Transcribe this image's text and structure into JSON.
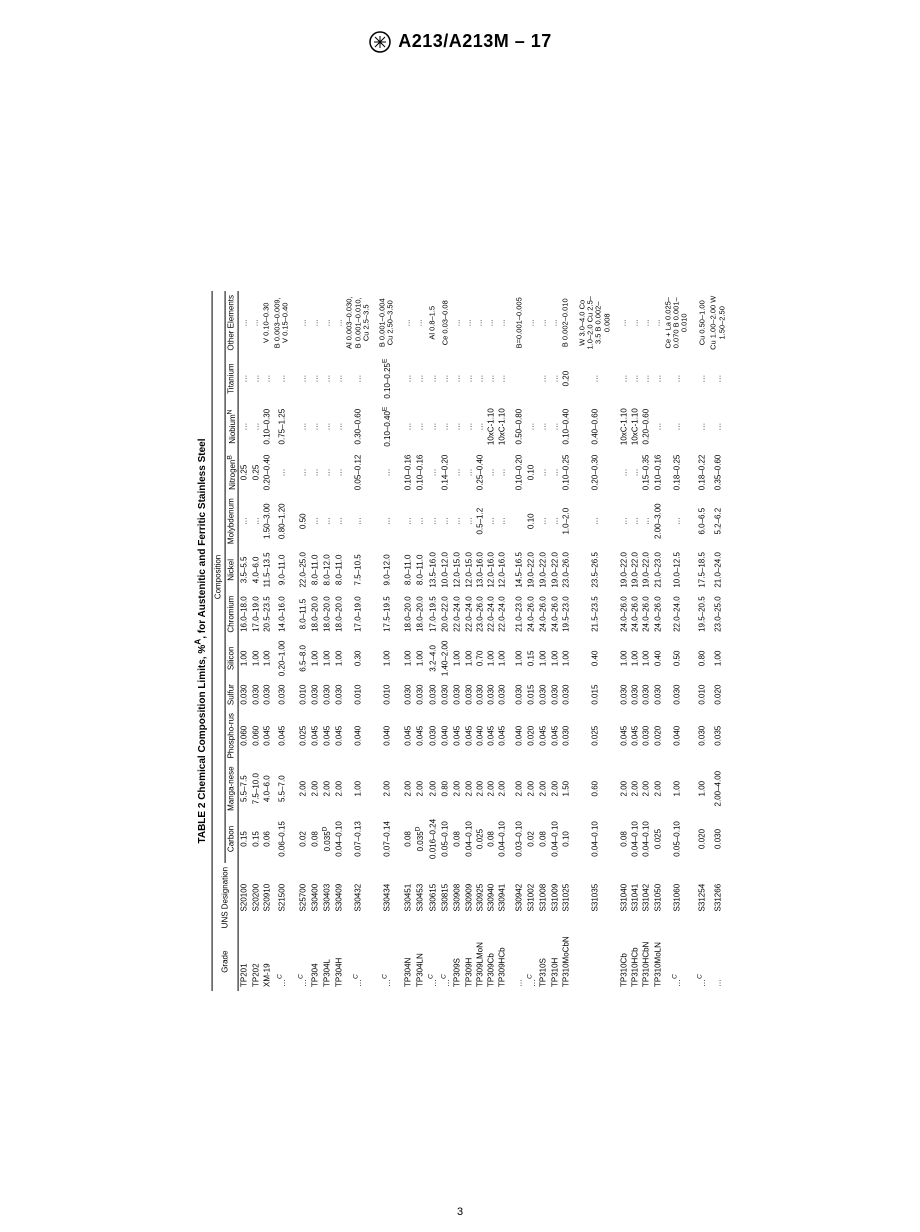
{
  "doc": {
    "standard": "A213/A213M – 17",
    "table_title": "TABLE 2 Chemical Composition Limits, %",
    "table_title_sup": "A",
    "table_title_tail": ", for Austenitic and Ferritic Stainless Steel",
    "composition_label": "Composition",
    "page_number": "3"
  },
  "columns": [
    "Grade",
    "UNS Designation",
    "Carbon",
    "Manga-nese",
    "Phospho-rus",
    "Sulfur",
    "Silicon",
    "Chromium",
    "Nickel",
    "Molybdenum",
    "Nitrogen",
    "Niobium",
    "Titanium",
    "Other Elements"
  ],
  "col_sup": {
    "11": "B",
    "12": "N"
  },
  "groups": [
    {
      "rows": [
        {
          "grade": "TP201",
          "uns": "S20100",
          "c": "0.15",
          "mn": "5.5–7.5",
          "p": "0.060",
          "s": "0.030",
          "si": "1.00",
          "cr": "16.0–18.0",
          "ni": "3.5–5.5",
          "mo": "…",
          "n": "0.25",
          "nb": "…",
          "ti": "…",
          "other": "…"
        },
        {
          "grade": "TP202",
          "uns": "S20200",
          "c": "0.15",
          "mn": "7.5–10.0",
          "p": "0.060",
          "s": "0.030",
          "si": "1.00",
          "cr": "17.0–19.0",
          "ni": "4.0–6.0",
          "mo": "…",
          "n": "0.25",
          "nb": "…",
          "ti": "…",
          "other": "…"
        },
        {
          "grade": "XM-19",
          "uns": "S20910",
          "c": "0.06",
          "mn": "4.0–6.0",
          "p": "0.045",
          "s": "0.030",
          "si": "1.00",
          "cr": "20.5–23.5",
          "ni": "11.5–13.5",
          "mo": "1.50–3.00",
          "n": "0.20–0.40",
          "nb": "0.10–0.30",
          "ti": "…",
          "other": "V 0.10–0.30"
        },
        {
          "grade": "…C",
          "uns": "S21500",
          "c": "0.06–0.15",
          "mn": "5.5–7.0",
          "p": "0.045",
          "s": "0.030",
          "si": "0.20–1.00",
          "cr": "14.0–16.0",
          "ni": "9.0–11.0",
          "mo": "0.80–1.20",
          "n": "…",
          "nb": "0.75–1.25",
          "ti": "…",
          "other": "B 0.003–0.009, V 0.15–0.40"
        }
      ]
    },
    {
      "rows": [
        {
          "grade": "…C",
          "uns": "S25700",
          "c": "0.02",
          "mn": "2.00",
          "p": "0.025",
          "s": "0.010",
          "si": "6.5–8.0",
          "cr": "8.0–11.5",
          "ni": "22.0–25.0",
          "mo": "0.50",
          "n": "…",
          "nb": "…",
          "ti": "…",
          "other": "…"
        },
        {
          "grade": "TP304",
          "uns": "S30400",
          "c": "0.08",
          "mn": "2.00",
          "p": "0.045",
          "s": "0.030",
          "si": "1.00",
          "cr": "18.0–20.0",
          "ni": "8.0–11.0",
          "mo": "…",
          "n": "…",
          "nb": "…",
          "ti": "…",
          "other": "…"
        },
        {
          "grade": "TP304L",
          "uns": "S30403",
          "c": "0.035D",
          "mn": "2.00",
          "p": "0.045",
          "s": "0.030",
          "si": "1.00",
          "cr": "18.0–20.0",
          "ni": "8.0–12.0",
          "mo": "…",
          "n": "…",
          "nb": "…",
          "ti": "…",
          "other": "…"
        },
        {
          "grade": "TP304H",
          "uns": "S30409",
          "c": "0.04–0.10",
          "mn": "2.00",
          "p": "0.045",
          "s": "0.030",
          "si": "1.00",
          "cr": "18.0–20.0",
          "ni": "8.0–11.0",
          "mo": "…",
          "n": "…",
          "nb": "…",
          "ti": "…",
          "other": "…"
        },
        {
          "grade": "…C",
          "uns": "S30432",
          "c": "0.07–0.13",
          "mn": "1.00",
          "p": "0.040",
          "s": "0.010",
          "si": "0.30",
          "cr": "17.0–19.0",
          "ni": "7.5–10.5",
          "mo": "…",
          "n": "0.05–0.12",
          "nb": "0.30–0.60",
          "ti": "…",
          "other": "Al 0.003–0.030, B 0.001–0.010, Cu 2.5–3.5"
        }
      ]
    },
    {
      "rows": [
        {
          "grade": "…C",
          "uns": "S30434",
          "c": "0.07–0.14",
          "mn": "2.00",
          "p": "0.040",
          "s": "0.010",
          "si": "1.00",
          "cr": "17.5–19.5",
          "ni": "9.0–12.0",
          "mo": "…",
          "n": "…",
          "nb": "0.10–0.40E",
          "ti": "0.10–0.25E",
          "other": "B 0.001–0.004 Cu 2.50–3.50"
        }
      ]
    },
    {
      "rows": [
        {
          "grade": "TP304N",
          "uns": "S30451",
          "c": "0.08",
          "mn": "2.00",
          "p": "0.045",
          "s": "0.030",
          "si": "1.00",
          "cr": "18.0–20.0",
          "ni": "8.0–11.0",
          "mo": "…",
          "n": "0.10–0.16",
          "nb": "…",
          "ti": "…",
          "other": "…"
        },
        {
          "grade": "TP304LN",
          "uns": "S30453",
          "c": "0.035D",
          "mn": "2.00",
          "p": "0.045",
          "s": "0.030",
          "si": "1.00",
          "cr": "18.0–20.0",
          "ni": "8.0–11.0",
          "mo": "…",
          "n": "0.10–0.16",
          "nb": "…",
          "ti": "…",
          "other": "…"
        },
        {
          "grade": "…C",
          "uns": "S30615",
          "c": "0.016–0.24",
          "mn": "2.00",
          "p": "0.030",
          "s": "0.030",
          "si": "3.2–4.0",
          "cr": "17.0–19.5",
          "ni": "13.5–16.0",
          "mo": "…",
          "n": "…",
          "nb": "…",
          "ti": "…",
          "other": "Al 0.8–1.5"
        },
        {
          "grade": "…C",
          "uns": "S30815",
          "c": "0.05–0.10",
          "mn": "0.80",
          "p": "0.040",
          "s": "0.030",
          "si": "1.40–2.00",
          "cr": "20.0–22.0",
          "ni": "10.0–12.0",
          "mo": "…",
          "n": "0.14–0.20",
          "nb": "…",
          "ti": "…",
          "other": "Ce 0.03–0.08"
        },
        {
          "grade": "TP309S",
          "uns": "S30908",
          "c": "0.08",
          "mn": "2.00",
          "p": "0.045",
          "s": "0.030",
          "si": "1.00",
          "cr": "22.0–24.0",
          "ni": "12.0–15.0",
          "mo": "…",
          "n": "…",
          "nb": "…",
          "ti": "…",
          "other": "…"
        },
        {
          "grade": "TP309H",
          "uns": "S30909",
          "c": "0.04–0.10",
          "mn": "2.00",
          "p": "0.045",
          "s": "0.030",
          "si": "1.00",
          "cr": "22.0–24.0",
          "ni": "12.0–15.0",
          "mo": "…",
          "n": "…",
          "nb": "…",
          "ti": "…",
          "other": "…"
        },
        {
          "grade": "TP309LMoN",
          "uns": "S30925",
          "c": "0.025",
          "mn": "2.00",
          "p": "0.040",
          "s": "0.030",
          "si": "0.70",
          "cr": "23.0–26.0",
          "ni": "13.0–16.0",
          "mo": "0.5–1.2",
          "n": "0.25–0.40",
          "nb": "…",
          "ti": "…",
          "other": "…"
        },
        {
          "grade": "TP309Cb",
          "uns": "S30940",
          "c": "0.08",
          "mn": "2.00",
          "p": "0.045",
          "s": "0.030",
          "si": "1.00",
          "cr": "22.0–24.0",
          "ni": "12.0–16.0",
          "mo": "…",
          "n": "…",
          "nb": "10xC-1.10",
          "ti": "…",
          "other": "…"
        },
        {
          "grade": "TP309HCb",
          "uns": "S30941",
          "c": "0.04–0.10",
          "mn": "2.00",
          "p": "0.045",
          "s": "0.030",
          "si": "1.00",
          "cr": "22.0–24.0",
          "ni": "12.0–16.0",
          "mo": "…",
          "n": "…",
          "nb": "10xC-1.10",
          "ti": "…",
          "other": "…"
        }
      ]
    },
    {
      "rows": [
        {
          "grade": "…",
          "uns": "S30942",
          "c": "0.03–0.10",
          "mn": "2.00",
          "p": "0.040",
          "s": "0.030",
          "si": "1.00",
          "cr": "21.0–23.0",
          "ni": "14.5–16.5",
          "mo": "",
          "n": "0.10–0.20",
          "nb": "0.50–0.80",
          "ti": "",
          "other": "B=0.001–0.005"
        },
        {
          "grade": "…C",
          "uns": "S31002",
          "c": "0.02",
          "mn": "2.00",
          "p": "0.020",
          "s": "0.015",
          "si": "0.15",
          "cr": "24.0–26.0",
          "ni": "19.0–22.0",
          "mo": "0.10",
          "n": "0.10",
          "nb": "…",
          "ti": "",
          "other": "…"
        },
        {
          "grade": "TP310S",
          "uns": "S31008",
          "c": "0.08",
          "mn": "2.00",
          "p": "0.045",
          "s": "0.030",
          "si": "1.00",
          "cr": "24.0–26.0",
          "ni": "19.0–22.0",
          "mo": "…",
          "n": "…",
          "nb": "…",
          "ti": "…",
          "other": "…"
        },
        {
          "grade": "TP310H",
          "uns": "S31009",
          "c": "0.04–0.10",
          "mn": "2.00",
          "p": "0.045",
          "s": "0.030",
          "si": "1.00",
          "cr": "24.0–26.0",
          "ni": "19.0–22.0",
          "mo": "…",
          "n": "…",
          "nb": "…",
          "ti": "…",
          "other": "…"
        },
        {
          "grade": "TP310MoCbN",
          "uns": "S31025",
          "c": "0.10",
          "mn": "1.50",
          "p": "0.030",
          "s": "0.030",
          "si": "1.00",
          "cr": "19.5–23.0",
          "ni": "23.0–26.0",
          "mo": "1.0–2.0",
          "n": "0.10–0.25",
          "nb": "0.10–0.40",
          "ti": "0.20",
          "other": "B 0.002–0.010"
        }
      ]
    },
    {
      "rows": [
        {
          "grade": "",
          "uns": "S31035",
          "c": "0.04–0.10",
          "mn": "0.60",
          "p": "0.025",
          "s": "0.015",
          "si": "0.40",
          "cr": "21.5–23.5",
          "ni": "23.5–26.5",
          "mo": "…",
          "n": "0.20–0.30",
          "nb": "0.40–0.60",
          "ti": "…",
          "other": "W 3.0–4.0 Co 1.0–2.0 Cu 2.5–3.5 B 0.002–0.008"
        }
      ]
    },
    {
      "rows": [
        {
          "grade": "TP310Cb",
          "uns": "S31040",
          "c": "0.08",
          "mn": "2.00",
          "p": "0.045",
          "s": "0.030",
          "si": "1.00",
          "cr": "24.0–26.0",
          "ni": "19.0–22.0",
          "mo": "…",
          "n": "…",
          "nb": "10xC-1.10",
          "ti": "…",
          "other": "…"
        },
        {
          "grade": "TP310HCb",
          "uns": "S31041",
          "c": "0.04–0.10",
          "mn": "2.00",
          "p": "0.045",
          "s": "0.030",
          "si": "1.00",
          "cr": "24.0–26.0",
          "ni": "19.0–22.0",
          "mo": "…",
          "n": "…",
          "nb": "10xC-1.10",
          "ti": "…",
          "other": "…"
        },
        {
          "grade": "TP310HCbN",
          "uns": "S31042",
          "c": "0.04–0.10",
          "mn": "2.00",
          "p": "0.030",
          "s": "0.030",
          "si": "1.00",
          "cr": "24.0–26.0",
          "ni": "19.0–22.0",
          "mo": "…",
          "n": "0.15–0.35",
          "nb": "0.20–0.60",
          "ti": "…",
          "other": "…"
        },
        {
          "grade": "TP310MoLN",
          "uns": "S31050",
          "c": "0.025",
          "mn": "2.00",
          "p": "0.020",
          "s": "0.030",
          "si": "0.40",
          "cr": "24.0–26.0",
          "ni": "21.0–23.0",
          "mo": "2.00–3.00",
          "n": "0.10–0.16",
          "nb": "…",
          "ti": "…",
          "other": "…"
        },
        {
          "grade": "…C",
          "uns": "S31060",
          "c": "0.05–0.10",
          "mn": "1.00",
          "p": "0.040",
          "s": "0.030",
          "si": "0.50",
          "cr": "22.0–24.0",
          "ni": "10.0–12.5",
          "mo": "…",
          "n": "0.18–0.25",
          "nb": "…",
          "ti": "…",
          "other": "Ce + La 0.025–0.070 B 0.001–0.010"
        }
      ]
    },
    {
      "rows": [
        {
          "grade": "…C",
          "uns": "S31254",
          "c": "0.020",
          "mn": "1.00",
          "p": "0.030",
          "s": "0.010",
          "si": "0.80",
          "cr": "19.5–20.5",
          "ni": "17.5–18.5",
          "mo": "6.0–6.5",
          "n": "0.18–0.22",
          "nb": "…",
          "ti": "…",
          "other": "Cu 0.50–1.00"
        },
        {
          "grade": "…",
          "uns": "S31266",
          "c": "0.030",
          "mn": "2.00–4.00",
          "p": "0.035",
          "s": "0.020",
          "si": "1.00",
          "cr": "23.0–25.0",
          "ni": "21.0–24.0",
          "mo": "5.2–6.2",
          "n": "0.35–0.60",
          "nb": "…",
          "ti": "…",
          "other": "Cu 1.00–2.00 W 1.50–2.50"
        }
      ]
    }
  ]
}
